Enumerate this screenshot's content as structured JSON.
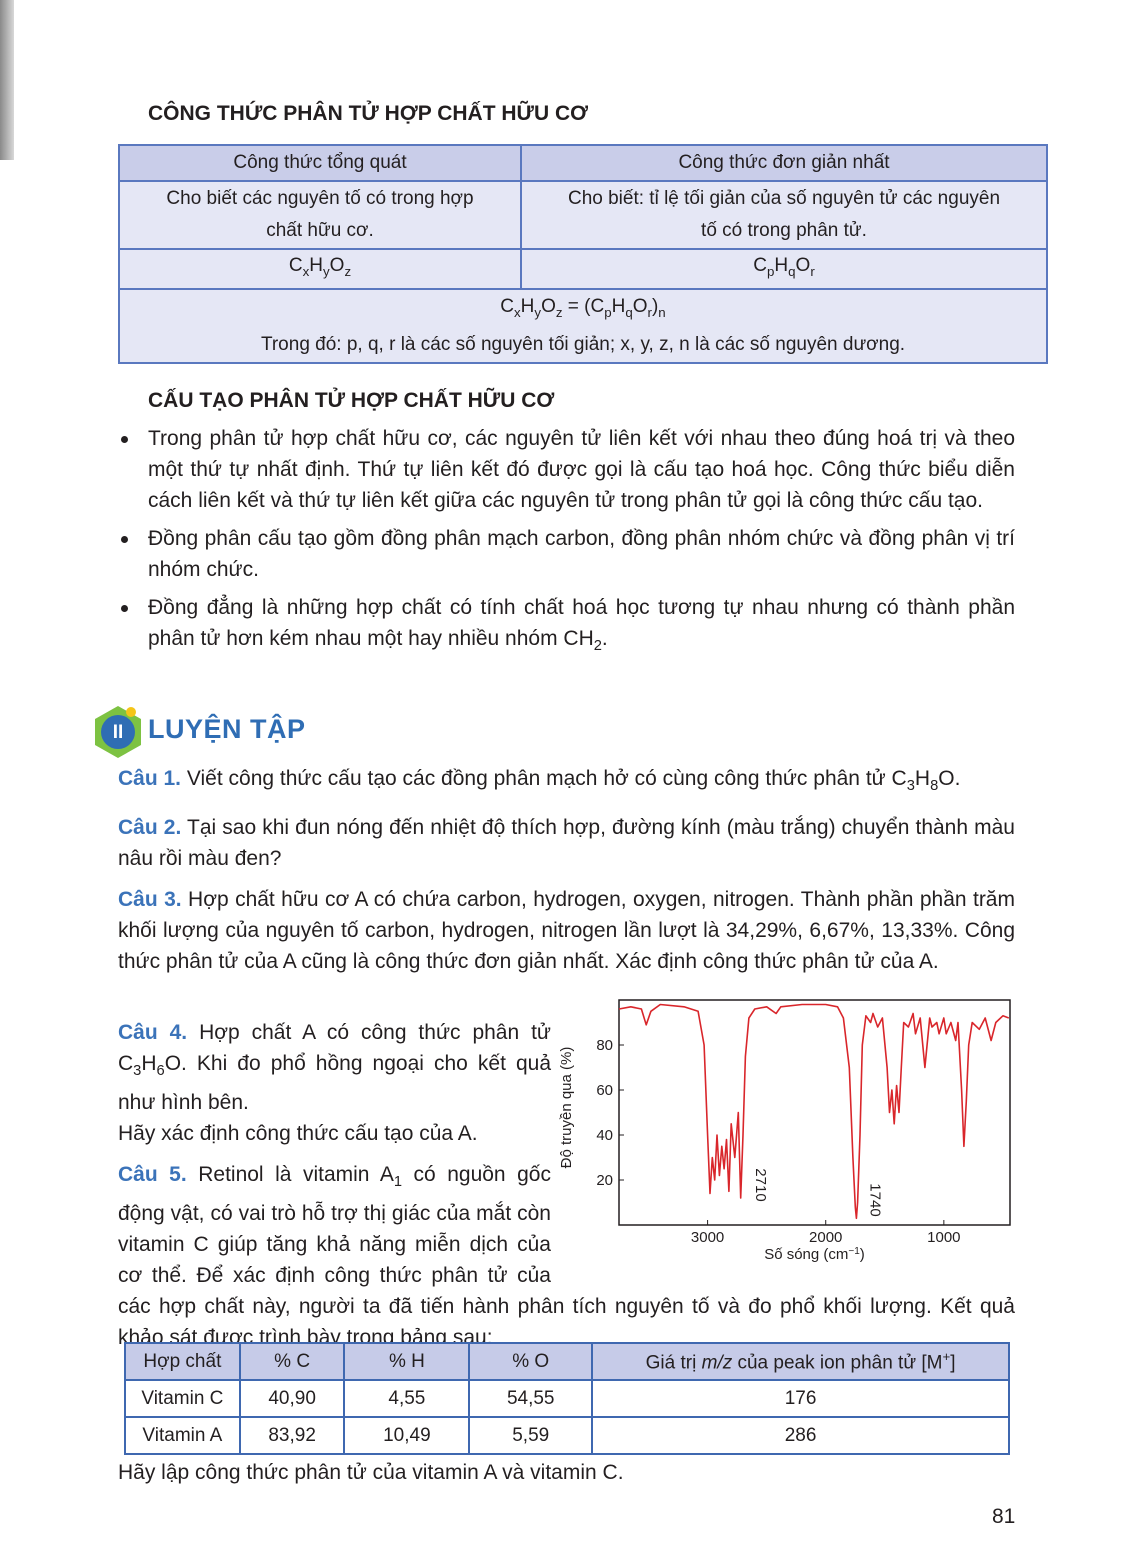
{
  "section1": {
    "title": "CÔNG THỨC PHÂN TỬ HỢP CHẤT HỮU CƠ",
    "table": {
      "headers": [
        "Công thức tổng quát",
        "Công thức đơn giản nhất"
      ],
      "rows": [
        [
          [
            "Cho biết các nguyên tố có trong hợp chất hữu cơ."
          ],
          [
            "Cho biết: tỉ lệ tối giản của số nguyên tử các nguyên tố có trong phân tử."
          ]
        ],
        [
          [
            "C",
            {
              "sub": "x"
            },
            "H",
            {
              "sub": "y"
            },
            "O",
            {
              "sub": "z"
            }
          ],
          [
            "C",
            {
              "sub": "p"
            },
            "H",
            {
              "sub": "q"
            },
            "O",
            {
              "sub": "r"
            }
          ]
        ]
      ],
      "footer": [
        [
          "C",
          {
            "sub": "x"
          },
          "H",
          {
            "sub": "y"
          },
          "O",
          {
            "sub": "z"
          },
          " = (C",
          {
            "sub": "p"
          },
          "H",
          {
            "sub": "q"
          },
          "O",
          {
            "sub": "r"
          },
          ")",
          {
            "sub": "n"
          }
        ],
        [
          "Trong đó: p, q, r là các số nguyên tối giản; x, y, z, n là các số nguyên dương."
        ]
      ]
    }
  },
  "section2": {
    "title": "CẤU TẠO PHÂN TỬ HỢP CHẤT HỮU CƠ",
    "bullets": [
      [
        "Trong phân tử hợp chất hữu cơ, các nguyên tử liên kết với nhau theo đúng hoá trị và theo một thứ tự nhất định. Thứ tự liên kết đó được gọi là cấu tạo hoá học. Công thức biểu diễn cách liên kết và thứ tự liên kết giữa các nguyên tử trong phân tử gọi là công thức cấu tạo."
      ],
      [
        "Đồng phân cấu tạo gồm đồng phân mạch carbon, đồng phân nhóm chức và đồng phân vị trí nhóm chức."
      ],
      [
        "Đồng đẳng là những hợp chất có tính chất hoá học tương tự nhau nhưng có thành phần phân tử hơn kém nhau một hay nhiều nhóm CH",
        {
          "sub": "2"
        },
        "."
      ]
    ]
  },
  "practice": {
    "badge": "II",
    "title": "LUYỆN TẬP",
    "questions": [
      {
        "label": "Câu 1.",
        "text": [
          "Viết công thức cấu tạo các đồng phân mạch hở có cùng công thức phân tử C",
          {
            "sub": "3"
          },
          "H",
          {
            "sub": "8"
          },
          "O."
        ]
      },
      {
        "label": "Câu 2.",
        "text": [
          "Tại sao khi đun nóng đến nhiệt độ thích hợp, đường kính (màu trắng) chuyển thành màu nâu rồi màu đen?"
        ]
      },
      {
        "label": "Câu 3.",
        "text": [
          "Hợp chất hữu cơ A có chứa carbon, hydrogen, oxygen, nitrogen. Thành phần phần trăm khối lượng của nguyên tố carbon, hydrogen, nitrogen lần lượt là 34,29%, 6,67%, 13,33%. Công thức phân tử của A cũng là công thức đơn giản nhất. Xác định công thức phân tử của A."
        ]
      },
      {
        "label": "Câu 4.",
        "text": [
          "Hợp chất A có công thức phân tử C",
          {
            "sub": "3"
          },
          "H",
          {
            "sub": "6"
          },
          "O. Khi đo phổ hồng ngoại cho kết quả như hình bên."
        ],
        "extra": "Hãy xác định công thức cấu tạo của A."
      },
      {
        "label": "Câu 5.",
        "text": [
          "Retinol là vitamin A",
          {
            "sub": "1"
          },
          " có nguồn gốc động vật, có vai trò hỗ trợ thị giác của mắt còn vitamin C giúp tăng khả năng miễn dịch của cơ thể. Để xác định công thức phân tử của các hợp chất này, người ta đã tiến hành phân tích nguyên tố và đo phổ khối lượng. Kết quả khảo sát được trình bày trong bảng sau:"
        ]
      }
    ]
  },
  "ir_chart": {
    "type": "line",
    "color": "#d9262b",
    "xlabel": [
      "Số sóng (cm",
      {
        "sup": "−1"
      },
      ")"
    ],
    "ylabel": "Độ truyền qua (%)",
    "xlim": [
      3750,
      440
    ],
    "ylim": [
      0,
      100
    ],
    "xticks": [
      3000,
      2000,
      1000
    ],
    "yticks": [
      20,
      40,
      60,
      80
    ],
    "annotations": [
      2710,
      1740
    ],
    "x": [
      3750,
      3650,
      3560,
      3520,
      3480,
      3400,
      3200,
      3080,
      3030,
      3000,
      2980,
      2960,
      2940,
      2920,
      2900,
      2880,
      2860,
      2840,
      2820,
      2800,
      2770,
      2740,
      2720,
      2700,
      2680,
      2650,
      2600,
      2500,
      2420,
      2380,
      2200,
      2000,
      1900,
      1850,
      1800,
      1770,
      1750,
      1740,
      1730,
      1710,
      1690,
      1660,
      1620,
      1600,
      1560,
      1520,
      1480,
      1460,
      1440,
      1420,
      1400,
      1380,
      1360,
      1340,
      1300,
      1260,
      1240,
      1200,
      1160,
      1120,
      1100,
      1060,
      1040,
      1000,
      980,
      940,
      900,
      880,
      850,
      830,
      810,
      790,
      760,
      700,
      650,
      600,
      560,
      500,
      450
    ],
    "values": [
      96,
      97,
      96,
      89,
      95,
      98,
      97,
      95,
      80,
      40,
      14,
      30,
      20,
      40,
      22,
      35,
      25,
      38,
      15,
      45,
      30,
      50,
      12,
      40,
      75,
      92,
      96,
      97,
      94,
      97,
      98,
      98,
      97,
      92,
      70,
      30,
      8,
      3,
      10,
      40,
      80,
      93,
      90,
      94,
      88,
      92,
      70,
      50,
      60,
      45,
      62,
      50,
      70,
      90,
      88,
      94,
      85,
      92,
      70,
      92,
      88,
      90,
      85,
      92,
      85,
      90,
      82,
      90,
      60,
      35,
      55,
      80,
      90,
      87,
      92,
      82,
      90,
      93,
      92
    ]
  },
  "table2": {
    "headers": [
      [
        "Hợp chất"
      ],
      [
        "% C"
      ],
      [
        "% H"
      ],
      [
        "% O"
      ],
      [
        "Giá trị ",
        {
          "i": "m/z"
        },
        " của peak ion phân tử [M",
        {
          "sup": "+"
        },
        "]"
      ]
    ],
    "rows": [
      [
        "Vitamin C",
        "40,90",
        "4,55",
        "54,55",
        "176"
      ],
      [
        "Vitamin A",
        "83,92",
        "10,49",
        "5,59",
        "286"
      ]
    ]
  },
  "closing": "Hãy lập công thức phân tử của vitamin A và vitamin C.",
  "page_number": "81"
}
